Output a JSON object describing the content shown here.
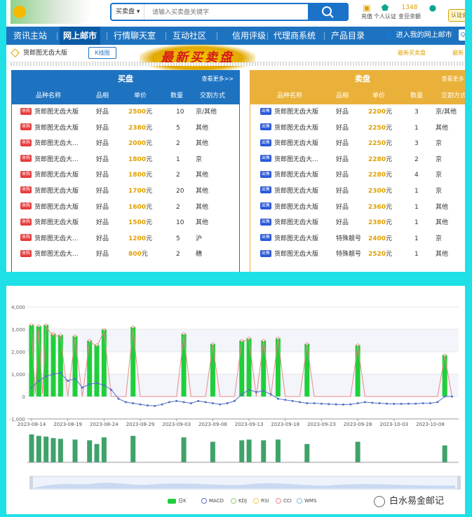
{
  "header": {
    "search_select": "买卖盘",
    "search_placeholder": "请输入买卖盘关键字",
    "icons": [
      {
        "label": "充值",
        "icon": "wallet-icon",
        "value": ""
      },
      {
        "label": "个人认证",
        "icon": "shield-icon",
        "value": ""
      },
      {
        "label": "金豆余额",
        "icon": "coin-icon",
        "value": "1348"
      },
      {
        "label": "",
        "icon": "user-icon",
        "value": ""
      }
    ],
    "cert_button": "认证会"
  },
  "nav": {
    "items": [
      "资讯主站",
      "网上邮市",
      "行情聊天室",
      "互动社区",
      "信用评级",
      "代理商系统",
      "产品目录"
    ],
    "active_index": 1,
    "login": "进入我的网上邮市",
    "badge": "QQ"
  },
  "crumb": {
    "title": "货郎图无齿大版",
    "kline_button": "K线图",
    "link1": "最新买卖盘",
    "link2": "最新"
  },
  "banner": "最新买卖盘",
  "buy": {
    "title": "买盘",
    "more": "查看更多>>",
    "columns": [
      "品种名称",
      "品相",
      "单价",
      "数量",
      "交割方式"
    ],
    "tag": "收购",
    "rows": [
      {
        "name": "货郎图无齿大版",
        "cond": "好品",
        "price": "2500",
        "qty": "10",
        "delivery": "京/其他"
      },
      {
        "name": "货郎图无齿大版",
        "cond": "好品",
        "price": "2380",
        "qty": "5",
        "delivery": "其他"
      },
      {
        "name": "货郎图无齿大...",
        "cond": "好品",
        "price": "2000",
        "qty": "2",
        "delivery": "其他"
      },
      {
        "name": "货郎图无齿大...",
        "cond": "好品",
        "price": "1800",
        "qty": "1",
        "delivery": "京"
      },
      {
        "name": "货郎图无齿大版",
        "cond": "好品",
        "price": "1800",
        "qty": "2",
        "delivery": "其他"
      },
      {
        "name": "货郎图无齿大版",
        "cond": "好品",
        "price": "1700",
        "qty": "20",
        "delivery": "其他"
      },
      {
        "name": "货郎图无齿大版",
        "cond": "好品",
        "price": "1600",
        "qty": "2",
        "delivery": "其他"
      },
      {
        "name": "货郎图无齿大版",
        "cond": "好品",
        "price": "1500",
        "qty": "10",
        "delivery": "其他"
      },
      {
        "name": "货郎图无齿大...",
        "cond": "好品",
        "price": "1200",
        "qty": "5",
        "delivery": "沪"
      },
      {
        "name": "货郎图无齿大...",
        "cond": "好品",
        "price": "800",
        "qty": "2",
        "delivery": "穗"
      }
    ]
  },
  "sell": {
    "title": "卖盘",
    "more": "查看更多>>",
    "columns": [
      "品种名称",
      "品相",
      "单价",
      "数量",
      "交割方式"
    ],
    "tag": "出售",
    "rows": [
      {
        "name": "货郎图无齿大版",
        "cond": "好品",
        "price": "2200",
        "qty": "3",
        "delivery": "京/其他"
      },
      {
        "name": "货郎图无齿大版",
        "cond": "好品",
        "price": "2250",
        "qty": "1",
        "delivery": "其他"
      },
      {
        "name": "货郎图无齿大版",
        "cond": "好品",
        "price": "2250",
        "qty": "3",
        "delivery": "京"
      },
      {
        "name": "货郎图无齿大...",
        "cond": "好品",
        "price": "2280",
        "qty": "2",
        "delivery": "京"
      },
      {
        "name": "货郎图无齿大版",
        "cond": "好品",
        "price": "2280",
        "qty": "4",
        "delivery": "京"
      },
      {
        "name": "货郎图无齿大版",
        "cond": "好品",
        "price": "2300",
        "qty": "1",
        "delivery": "京"
      },
      {
        "name": "货郎图无齿大版",
        "cond": "好品",
        "price": "2360",
        "qty": "1",
        "delivery": "其他"
      },
      {
        "name": "货郎图无齿大版",
        "cond": "好品",
        "price": "2380",
        "qty": "1",
        "delivery": "其他"
      },
      {
        "name": "货郎图无齿大版",
        "cond": "特殊靓号",
        "price": "2400",
        "qty": "1",
        "delivery": "京"
      },
      {
        "name": "货郎图无齿大版",
        "cond": "特殊靓号",
        "price": "2520",
        "qty": "1",
        "delivery": "其他"
      }
    ]
  },
  "price_unit": "元",
  "chart_data": {
    "type": "bar",
    "y_ticks": [
      "4,000",
      "3,000",
      "2,000",
      "1,000",
      "0",
      "-1,000"
    ],
    "ylim": [
      -1000,
      4000
    ],
    "x_ticks": [
      "2023-08-14",
      "2023-08-19",
      "2023-08-24",
      "2023-08-29",
      "2023-09-03",
      "2023-09-08",
      "2023-09-13",
      "2023-09-18",
      "2023-09-23",
      "2023-09-28",
      "2023-10-03",
      "2023-10-08"
    ],
    "x_start_label": "2023-08-14",
    "days": 60,
    "series": [
      {
        "name": "日K",
        "type": "bar",
        "points": [
          [
            0,
            3200
          ],
          [
            1,
            3150
          ],
          [
            2,
            3200
          ],
          [
            3,
            2800
          ],
          [
            4,
            2750
          ],
          [
            6,
            2700
          ],
          [
            8,
            2500
          ],
          [
            9,
            2300
          ],
          [
            10,
            3000
          ],
          [
            14,
            3100
          ],
          [
            21,
            2800
          ],
          [
            25,
            2350
          ],
          [
            29,
            2500
          ],
          [
            30,
            2600
          ],
          [
            32,
            2500
          ],
          [
            34,
            2600
          ],
          [
            38,
            2350
          ],
          [
            45,
            2300
          ],
          [
            57,
            1850
          ]
        ]
      },
      {
        "name": "MACD",
        "type": "line",
        "points": [
          [
            0,
            400
          ],
          [
            1,
            700
          ],
          [
            2,
            900
          ],
          [
            3,
            1000
          ],
          [
            4,
            1050
          ],
          [
            5,
            700
          ],
          [
            6,
            800
          ],
          [
            7,
            400
          ],
          [
            8,
            550
          ],
          [
            9,
            600
          ],
          [
            10,
            500
          ],
          [
            11,
            300
          ],
          [
            12,
            -100
          ],
          [
            13,
            -250
          ],
          [
            14,
            -300
          ],
          [
            15,
            -350
          ],
          [
            16,
            -400
          ],
          [
            17,
            -420
          ],
          [
            18,
            -350
          ],
          [
            19,
            -250
          ],
          [
            20,
            -200
          ],
          [
            21,
            -250
          ],
          [
            22,
            -300
          ],
          [
            23,
            -200
          ],
          [
            24,
            -250
          ],
          [
            25,
            -300
          ],
          [
            26,
            -350
          ],
          [
            27,
            -300
          ],
          [
            28,
            -200
          ],
          [
            29,
            100
          ],
          [
            30,
            300
          ],
          [
            31,
            200
          ],
          [
            32,
            250
          ],
          [
            33,
            100
          ],
          [
            34,
            -100
          ],
          [
            35,
            -150
          ],
          [
            36,
            -200
          ],
          [
            37,
            -250
          ],
          [
            38,
            -300
          ],
          [
            39,
            -300
          ],
          [
            40,
            -320
          ],
          [
            41,
            -340
          ],
          [
            42,
            -350
          ],
          [
            43,
            -360
          ],
          [
            44,
            -350
          ],
          [
            45,
            -300
          ],
          [
            46,
            -250
          ],
          [
            47,
            -280
          ],
          [
            48,
            -300
          ],
          [
            49,
            -320
          ],
          [
            50,
            -330
          ],
          [
            51,
            -330
          ],
          [
            52,
            -320
          ],
          [
            53,
            -320
          ],
          [
            54,
            -300
          ],
          [
            55,
            -300
          ],
          [
            56,
            -250
          ],
          [
            57,
            0
          ],
          [
            58,
            0
          ]
        ]
      },
      {
        "name": "KDJ",
        "type": "line",
        "points": []
      },
      {
        "name": "RSI",
        "type": "line",
        "points": []
      },
      {
        "name": "CCI",
        "type": "line",
        "points": [
          [
            0,
            3000
          ],
          [
            0.5,
            100
          ],
          [
            1,
            3000
          ],
          [
            1.5,
            100
          ],
          [
            2,
            3100
          ],
          [
            3,
            2700
          ],
          [
            4,
            2700
          ],
          [
            5,
            0
          ],
          [
            6,
            2600
          ],
          [
            7,
            0
          ],
          [
            8,
            2450
          ],
          [
            9,
            2250
          ],
          [
            10,
            2900
          ],
          [
            11,
            0
          ],
          [
            13,
            0
          ],
          [
            14,
            3000
          ],
          [
            15,
            0
          ],
          [
            20,
            0
          ],
          [
            21,
            2700
          ],
          [
            22,
            0
          ],
          [
            24,
            0
          ],
          [
            25,
            2300
          ],
          [
            26,
            0
          ],
          [
            28,
            0
          ],
          [
            29,
            2450
          ],
          [
            30,
            2550
          ],
          [
            31,
            0
          ],
          [
            32,
            2450
          ],
          [
            33,
            0
          ],
          [
            34,
            2550
          ],
          [
            35,
            0
          ],
          [
            37,
            0
          ],
          [
            38,
            2300
          ],
          [
            39,
            0
          ],
          [
            44,
            0
          ],
          [
            45,
            2250
          ],
          [
            46,
            0
          ],
          [
            56,
            0
          ],
          [
            57,
            1800
          ],
          [
            58,
            0
          ]
        ]
      },
      {
        "name": "WMS",
        "type": "line",
        "points": []
      }
    ],
    "volume": [
      [
        0,
        380
      ],
      [
        1,
        360
      ],
      [
        2,
        350
      ],
      [
        3,
        330
      ],
      [
        4,
        320
      ],
      [
        6,
        310
      ],
      [
        8,
        300
      ],
      [
        9,
        250
      ],
      [
        10,
        340
      ],
      [
        14,
        360
      ],
      [
        21,
        340
      ],
      [
        25,
        280
      ],
      [
        29,
        300
      ],
      [
        30,
        310
      ],
      [
        32,
        300
      ],
      [
        34,
        310
      ],
      [
        38,
        250
      ],
      [
        45,
        280
      ],
      [
        57,
        230
      ]
    ],
    "colors": {
      "bar": "#1fcf3a",
      "macd": "#5470c6",
      "cci": "#e98a8a",
      "volume": "#3fa26a"
    },
    "legend_position": "bottom"
  },
  "watermark": "白水易金邮记"
}
